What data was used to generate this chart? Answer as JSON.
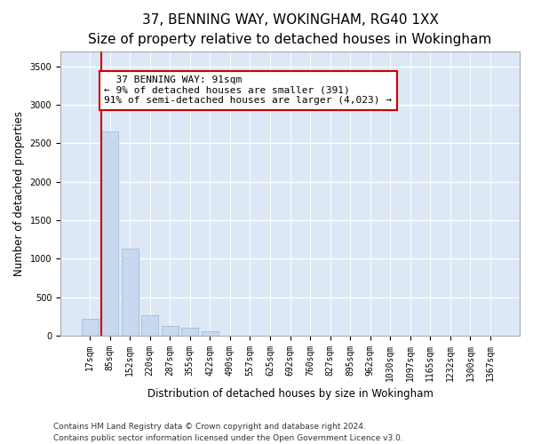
{
  "title": "37, BENNING WAY, WOKINGHAM, RG40 1XX",
  "subtitle": "Size of property relative to detached houses in Wokingham",
  "xlabel": "Distribution of detached houses by size in Wokingham",
  "ylabel": "Number of detached properties",
  "bar_color": "#c8d8ee",
  "bar_edge_color": "#9ab4d8",
  "background_color": "#dce8f5",
  "grid_color": "#ffffff",
  "annotation_line_color": "#cc0000",
  "annotation_box_color": "#cc0000",
  "annotation_text": "  37 BENNING WAY: 91sqm\n← 9% of detached houses are smaller (391)\n91% of semi-detached houses are larger (4,023) →",
  "categories": [
    "17sqm",
    "85sqm",
    "152sqm",
    "220sqm",
    "287sqm",
    "355sqm",
    "422sqm",
    "490sqm",
    "557sqm",
    "625sqm",
    "692sqm",
    "760sqm",
    "827sqm",
    "895sqm",
    "962sqm",
    "1030sqm",
    "1097sqm",
    "1165sqm",
    "1232sqm",
    "1300sqm",
    "1367sqm"
  ],
  "values": [
    215,
    2650,
    1125,
    265,
    130,
    100,
    55,
    0,
    0,
    0,
    0,
    0,
    0,
    0,
    0,
    0,
    0,
    0,
    0,
    0,
    0
  ],
  "ylim": [
    0,
    3700
  ],
  "yticks": [
    0,
    500,
    1000,
    1500,
    2000,
    2500,
    3000,
    3500
  ],
  "footer_text": "Contains HM Land Registry data © Crown copyright and database right 2024.\nContains public sector information licensed under the Open Government Licence v3.0.",
  "title_fontsize": 11,
  "xlabel_fontsize": 8.5,
  "ylabel_fontsize": 8.5,
  "tick_fontsize": 7,
  "footer_fontsize": 6.5,
  "annotation_fontsize": 8,
  "fig_width": 6.0,
  "fig_height": 5.0,
  "dpi": 100
}
